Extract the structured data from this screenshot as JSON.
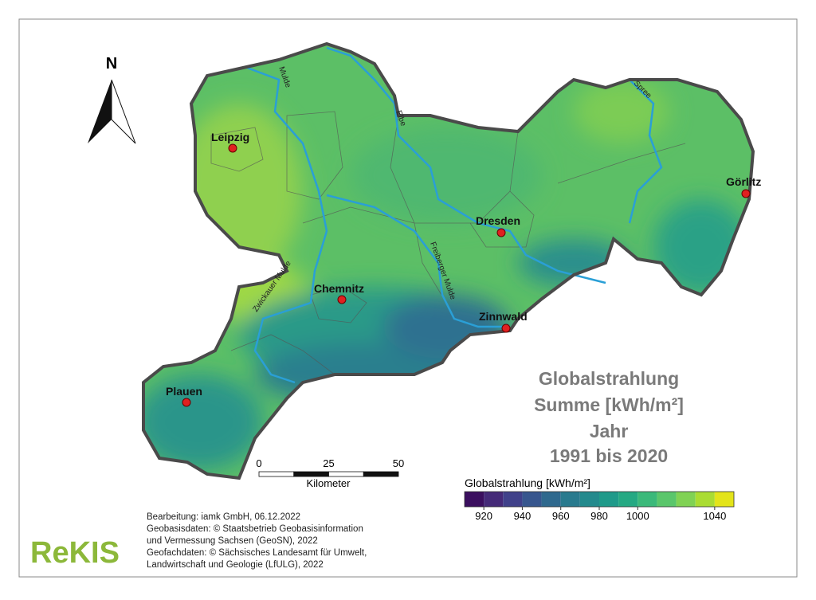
{
  "map": {
    "title_lines": [
      "Globalstrahlung",
      "Summe [kWh/m²]",
      "Jahr",
      "1991 bis 2020"
    ],
    "north": "N",
    "cities": [
      "Leipzig",
      "Görlitz",
      "Dresden",
      "Chemnitz",
      "Zinnwald",
      "Plauen"
    ],
    "rivers": [
      "Mulde",
      "Elbe",
      "Spree",
      "Zwickauer Mulde",
      "Freiberger Mulde"
    ],
    "scale_bar": {
      "unit": "Kilometer",
      "ticks": [
        0,
        25,
        50
      ],
      "segment_edges": [
        0,
        12.5,
        25,
        37.5,
        50
      ]
    },
    "legend": {
      "title": "Globalstrahlung [kWh/m²]",
      "bins": [
        910,
        920,
        930,
        940,
        950,
        960,
        970,
        980,
        990,
        1000,
        1010,
        1020,
        1030,
        1040,
        1050
      ],
      "colors": [
        "#3b0f5f",
        "#452a78",
        "#40418a",
        "#37568e",
        "#2f698e",
        "#297a8e",
        "#238a8d",
        "#1f9a8a",
        "#25a983",
        "#3bb97a",
        "#5ac66b",
        "#80d254",
        "#aadc32",
        "#e3e41a"
      ],
      "ticks": [
        920,
        940,
        960,
        980,
        1000,
        1040
      ]
    },
    "credits": [
      "Bearbeitung: iamk GmbH, 06.12.2022",
      "Geobasisdaten: © Staatsbetrieb Geobasisinformation",
      "und Vermessung Sachsen (GeoSN), 2022",
      "Geofachdaten: © Sächsisches Landesamt für Umwelt,",
      "Landwirtschaft und Geologie (LfULG), 2022"
    ],
    "logo": "ReKIS"
  }
}
